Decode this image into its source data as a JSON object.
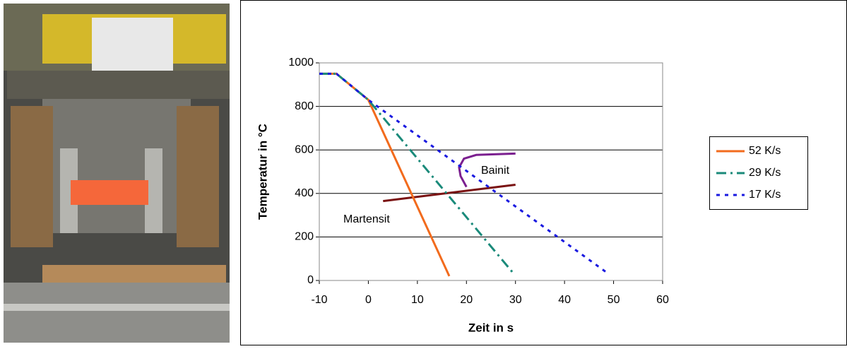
{
  "chart_data": {
    "type": "line",
    "x_label": "Zeit in s",
    "y_label": "Temperatur in °C",
    "xlim": [
      -10,
      60
    ],
    "xticks": [
      -10,
      0,
      10,
      20,
      30,
      40,
      50,
      60
    ],
    "ylim": [
      0,
      1000
    ],
    "yticks": [
      0,
      200,
      400,
      600,
      800,
      1000
    ],
    "grid": "y",
    "legend": "right",
    "series": [
      {
        "name": "52 K/s",
        "color": "#f26b1d",
        "style": "solid",
        "x": [
          -10,
          -6.5,
          0,
          16.5
        ],
        "values": [
          950,
          950,
          830,
          20
        ]
      },
      {
        "name": "29 K/s",
        "color": "#1a8a7a",
        "style": "dashdot",
        "x": [
          -10,
          -6.5,
          0,
          29.5
        ],
        "values": [
          950,
          950,
          830,
          35
        ]
      },
      {
        "name": "17 K/s",
        "color": "#1a1ae0",
        "style": "dotted",
        "x": [
          -10,
          -6.5,
          0,
          49
        ],
        "values": [
          950,
          950,
          830,
          30
        ]
      }
    ],
    "annotations": [
      {
        "text": "Bainit",
        "color": "#7b1f8f",
        "x": [
          30,
          22,
          19.5,
          18.5,
          18.8,
          20
        ],
        "values": [
          583,
          577,
          560,
          520,
          480,
          430
        ]
      },
      {
        "text": "Martensit",
        "color": "#7a1212",
        "x": [
          3,
          30
        ],
        "values": [
          365,
          440
        ]
      }
    ]
  }
}
